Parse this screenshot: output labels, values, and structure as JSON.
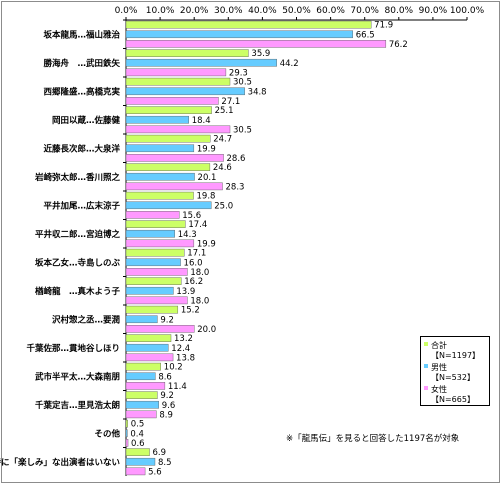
{
  "chart_data": {
    "type": "bar",
    "orientation": "horizontal",
    "xlim": [
      0,
      100
    ],
    "x_ticks": [
      "0.0%",
      "10.0%",
      "20.0%",
      "30.0%",
      "40.0%",
      "50.0%",
      "60.0%",
      "70.0%",
      "80.0%",
      "90.0%",
      "100.0%"
    ],
    "categories": [
      "坂本龍馬…福山雅治",
      "勝海舟　…武田鉄矢",
      "西郷隆盛…高橋克実",
      "岡田以蔵…佐藤健",
      "近藤長次郎…大泉洋",
      "岩崎弥太郎…香川照之",
      "平井加尾…広末涼子",
      "平井収二郎…宮迫博之",
      "坂本乙女…寺島しのぶ",
      "楢崎龍　…真木よう子",
      "沢村惣之丞…要潤",
      "千葉佐那…貫地谷しほり",
      "武市半平太…大森南朋",
      "千葉定吉…里見浩太朗",
      "その他",
      "特に「楽しみ」な出演者はいない"
    ],
    "series": [
      {
        "name": "合計",
        "n_label": "【N=1197】",
        "color": "#ccff66",
        "values": [
          71.9,
          35.9,
          30.5,
          25.1,
          24.7,
          24.6,
          19.8,
          17.4,
          17.1,
          16.2,
          15.2,
          13.2,
          10.2,
          9.2,
          0.5,
          6.9
        ],
        "labels": [
          "71.9",
          "35.9",
          "30.5",
          "25.1",
          "24.7",
          "24.6",
          "19.8",
          "17.4",
          "17.1",
          "16.2",
          "15.2",
          "13.2",
          "10.2",
          "9.2",
          "0.5",
          "6.9"
        ]
      },
      {
        "name": "男性",
        "n_label": "【N=532】",
        "color": "#66ccff",
        "values": [
          66.5,
          44.2,
          34.8,
          18.4,
          19.9,
          20.1,
          25.0,
          14.3,
          16.0,
          13.9,
          9.2,
          12.4,
          8.6,
          9.6,
          0.4,
          8.5
        ],
        "labels": [
          "66.5",
          "44.2",
          "34.8",
          "18.4",
          "19.9",
          "20.1",
          "25.0",
          "14.3",
          "16.0",
          "13.9",
          "9.2",
          "12.4",
          "8.6",
          "9.6",
          "0.4",
          "8.5"
        ]
      },
      {
        "name": "女性",
        "n_label": "【N=665】",
        "color": "#ff99ff",
        "values": [
          76.2,
          29.3,
          27.1,
          30.5,
          28.6,
          28.3,
          15.6,
          19.9,
          18.0,
          18.0,
          20.0,
          13.8,
          11.4,
          8.9,
          0.6,
          5.6
        ],
        "labels": [
          "76.2",
          "29.3",
          "27.1",
          "30.5",
          "28.6",
          "28.3",
          "15.6",
          "19.9",
          "18.0",
          "18.0",
          "20.0",
          "13.8",
          "11.4",
          "8.9",
          "0.6",
          "5.6"
        ]
      }
    ],
    "legend_position": "right",
    "grid": false
  },
  "note": "※「龍馬伝」を見ると回答した1197名が対象"
}
